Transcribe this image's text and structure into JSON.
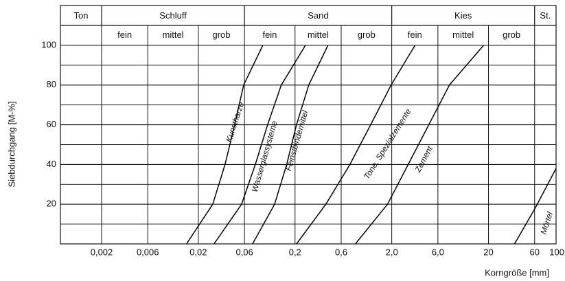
{
  "chart_data": {
    "type": "line",
    "ylabel": "Siebdurchgang [M-%]",
    "xlabel": "Korngröße [mm]",
    "xscale": "log",
    "xlim": [
      0.00075,
      100
    ],
    "xticks": [
      {
        "value": 0.002,
        "label": "0,002"
      },
      {
        "value": 0.006,
        "label": "0,006"
      },
      {
        "value": 0.02,
        "label": "0,02"
      },
      {
        "value": 0.06,
        "label": "0,06"
      },
      {
        "value": 0.2,
        "label": "0,2"
      },
      {
        "value": 0.6,
        "label": "0,6"
      },
      {
        "value": 2,
        "label": "2,0"
      },
      {
        "value": 6,
        "label": "6,0"
      },
      20,
      60,
      100
    ],
    "ylim": [
      0,
      100
    ],
    "yticks": [
      20,
      40,
      60,
      80,
      100
    ],
    "yticks_minor": [
      10,
      30,
      50,
      70,
      90
    ],
    "grid": true,
    "zones": [
      {
        "name": "Ton"
      },
      {
        "name": "Schluff",
        "parts": [
          "fein",
          "mittel",
          "grob"
        ]
      },
      {
        "name": "Sand",
        "parts": [
          "fein",
          "mittel",
          "grob"
        ]
      },
      {
        "name": "Kies",
        "parts": [
          "fein",
          "mittel",
          "grob"
        ]
      },
      {
        "name": "St."
      }
    ],
    "series": [
      {
        "name": "Kunstharze",
        "color": "#000000",
        "x": [
          0.0151,
          0.0282,
          0.0378,
          0.0475,
          0.0588,
          0.0928
        ],
        "values": [
          0,
          20,
          40,
          60,
          80,
          100
        ]
      },
      {
        "name": "Wasserglassysteme",
        "color": "#000000",
        "x": [
          0.0291,
          0.056,
          0.0777,
          0.104,
          0.144,
          0.256
        ],
        "values": [
          0,
          20,
          40,
          60,
          80,
          100
        ]
      },
      {
        "name": "Feinstbindemittel",
        "color": "#000000",
        "x": [
          0.0727,
          0.123,
          0.164,
          0.207,
          0.277,
          0.438
        ],
        "values": [
          0,
          20,
          40,
          60,
          80,
          100
        ]
      },
      {
        "name": "Tone, Spezialzemente",
        "color": "#000000",
        "x": [
          0.207,
          0.417,
          0.738,
          1.21,
          1.97,
          3.48
        ],
        "values": [
          0,
          20,
          40,
          60,
          80,
          100
        ]
      },
      {
        "name": "Zement",
        "color": "#000000",
        "x": [
          0.842,
          1.81,
          2.96,
          4.83,
          7.89,
          17.8
        ],
        "values": [
          0,
          20,
          40,
          60,
          80,
          100
        ]
      },
      {
        "name": "Mörtel",
        "color": "#000000",
        "x": [
          37.2,
          60.7,
          100
        ],
        "values": [
          0,
          18,
          38
        ]
      }
    ]
  }
}
